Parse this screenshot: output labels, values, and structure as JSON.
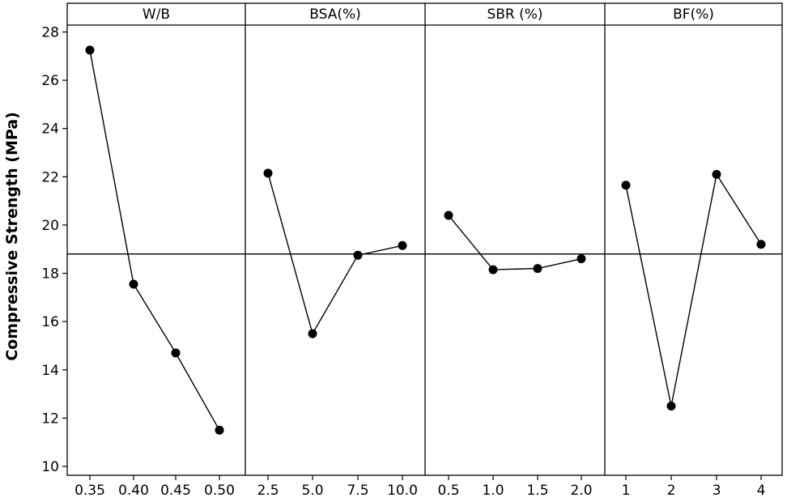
{
  "chart_data": {
    "type": "line",
    "ylabel": "Compressive Strength (MPa)",
    "ylim": [
      9.8,
      28.3
    ],
    "yticks": [
      10,
      12,
      14,
      16,
      18,
      20,
      22,
      24,
      26,
      28
    ],
    "reference_line": 18.8,
    "grid": false,
    "panels": [
      {
        "title": "W/B",
        "x": [
          "0.35",
          "0.40",
          "0.45",
          "0.50"
        ],
        "values": [
          27.25,
          17.55,
          14.7,
          11.5
        ]
      },
      {
        "title": "BSA(%)",
        "x": [
          "2.5",
          "5.0",
          "7.5",
          "10.0"
        ],
        "values": [
          22.15,
          15.5,
          18.75,
          19.15
        ]
      },
      {
        "title": "SBR (%)",
        "x": [
          "0.5",
          "1.0",
          "1.5",
          "2.0"
        ],
        "values": [
          20.4,
          18.15,
          18.2,
          18.6
        ]
      },
      {
        "title": "BF(%)",
        "x": [
          "1",
          "2",
          "3",
          "4"
        ],
        "values": [
          21.65,
          12.5,
          22.1,
          19.2
        ]
      }
    ]
  }
}
